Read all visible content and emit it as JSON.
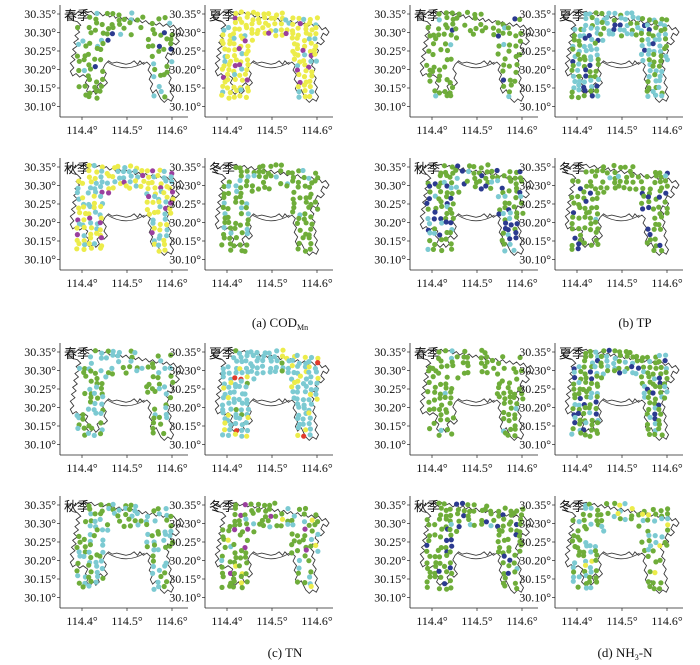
{
  "season_labels": [
    "春季",
    "夏季",
    "秋季",
    "冬季"
  ],
  "y_ticks": [
    "30.35°",
    "30.30°",
    "30.25°",
    "30.20°",
    "30.15°",
    "30.10°"
  ],
  "x_ticks": [
    "114.4°",
    "114.5°",
    "114.6°"
  ],
  "captions": [
    {
      "main": "(a) COD",
      "sub": "Mn"
    },
    {
      "main": "(b) TP",
      "sub": ""
    },
    {
      "main": "(c) TN",
      "sub": ""
    },
    {
      "main": "(d) NH",
      "sub": "3",
      "tail": "-N"
    }
  ],
  "colors": {
    "green": "#6fad3a",
    "cyan": "#7ccad2",
    "yellow": "#ecec4a",
    "purple": "#9a3f9e",
    "navy": "#2b3a8f",
    "red": "#e33a2a",
    "outline": "#3a3a3a"
  },
  "panels": [
    {
      "group": 0,
      "season": 0,
      "mix": {
        "green": 0.75,
        "cyan": 0.2,
        "navy": 0.05
      },
      "density": 0.55
    },
    {
      "group": 0,
      "season": 1,
      "mix": {
        "yellow": 0.8,
        "purple": 0.1,
        "cyan": 0.1
      },
      "density": 1.0
    },
    {
      "group": 0,
      "season": 2,
      "mix": {
        "yellow": 0.55,
        "cyan": 0.35,
        "purple": 0.1
      },
      "density": 0.9
    },
    {
      "group": 0,
      "season": 3,
      "mix": {
        "green": 0.85,
        "cyan": 0.15
      },
      "density": 0.7
    },
    {
      "group": 1,
      "season": 0,
      "mix": {
        "green": 0.9,
        "cyan": 0.05,
        "navy": 0.05
      },
      "density": 0.55
    },
    {
      "group": 1,
      "season": 1,
      "mix": {
        "cyan": 0.5,
        "green": 0.35,
        "navy": 0.15
      },
      "density": 1.0
    },
    {
      "group": 1,
      "season": 2,
      "mix": {
        "green": 0.65,
        "navy": 0.25,
        "cyan": 0.1
      },
      "density": 0.85
    },
    {
      "group": 1,
      "season": 3,
      "mix": {
        "green": 0.85,
        "navy": 0.1,
        "cyan": 0.05
      },
      "density": 0.7
    },
    {
      "group": 2,
      "season": 0,
      "mix": {
        "green": 0.55,
        "cyan": 0.45
      },
      "density": 0.6
    },
    {
      "group": 2,
      "season": 1,
      "mix": {
        "cyan": 0.75,
        "yellow": 0.15,
        "red": 0.05,
        "green": 0.05
      },
      "density": 1.0
    },
    {
      "group": 2,
      "season": 2,
      "mix": {
        "cyan": 0.5,
        "green": 0.5
      },
      "density": 0.75
    },
    {
      "group": 2,
      "season": 3,
      "mix": {
        "green": 0.7,
        "yellow": 0.12,
        "cyan": 0.13,
        "purple": 0.05
      },
      "density": 0.7
    },
    {
      "group": 3,
      "season": 0,
      "mix": {
        "green": 0.95,
        "cyan": 0.05
      },
      "density": 0.55
    },
    {
      "group": 3,
      "season": 1,
      "mix": {
        "green": 0.6,
        "cyan": 0.3,
        "navy": 0.1
      },
      "density": 1.0
    },
    {
      "group": 3,
      "season": 2,
      "mix": {
        "green": 0.85,
        "navy": 0.12,
        "cyan": 0.03
      },
      "density": 0.75
    },
    {
      "group": 3,
      "season": 3,
      "mix": {
        "green": 0.65,
        "cyan": 0.3,
        "yellow": 0.05
      },
      "density": 0.65
    }
  ]
}
